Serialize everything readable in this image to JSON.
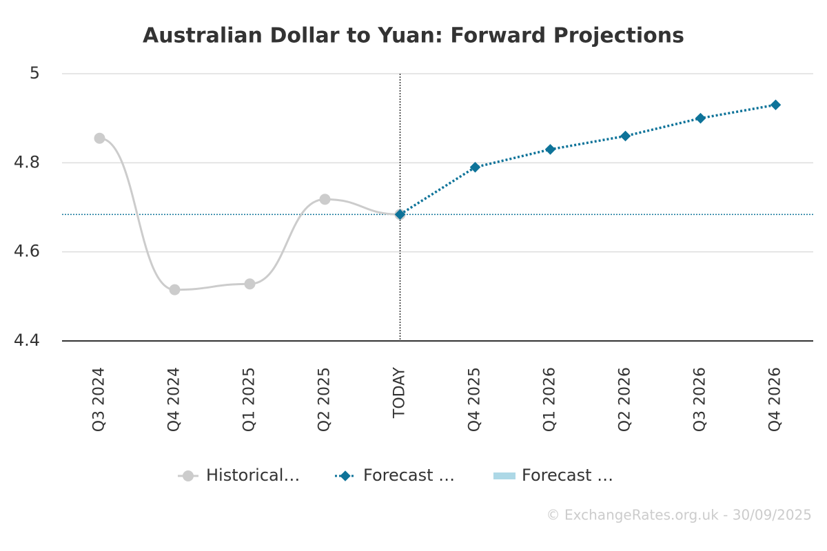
{
  "chart_data": {
    "type": "line",
    "title": "Australian Dollar to Yuan: Forward Projections",
    "categories": [
      "Q3 2024",
      "Q4 2024",
      "Q1 2025",
      "Q2 2025",
      "TODAY",
      "Q4 2025",
      "Q1 2026",
      "Q2 2026",
      "Q3 2026",
      "Q4 2026"
    ],
    "series": [
      {
        "name": "Historical…",
        "color": "#cccccc",
        "marker": "circle",
        "dash": false,
        "values": [
          4.855,
          4.515,
          4.528,
          4.718,
          4.684,
          null,
          null,
          null,
          null,
          null
        ]
      },
      {
        "name": "Forecast …",
        "color": "#0e7399",
        "marker": "diamond",
        "dash": true,
        "values": [
          null,
          null,
          null,
          null,
          4.684,
          4.79,
          4.83,
          4.86,
          4.9,
          4.93
        ]
      },
      {
        "name": "Forecast …",
        "color": "#add8e6",
        "marker": "band",
        "dash": false,
        "values": [
          null,
          null,
          null,
          null,
          null,
          null,
          null,
          null,
          null,
          null
        ]
      }
    ],
    "ylim": [
      4.4,
      5
    ],
    "yticks": [
      4.4,
      4.6,
      4.8,
      5
    ],
    "grid": true,
    "legend": "bottom",
    "footer": "© ExchangeRates.org.uk - 30/09/2025"
  }
}
